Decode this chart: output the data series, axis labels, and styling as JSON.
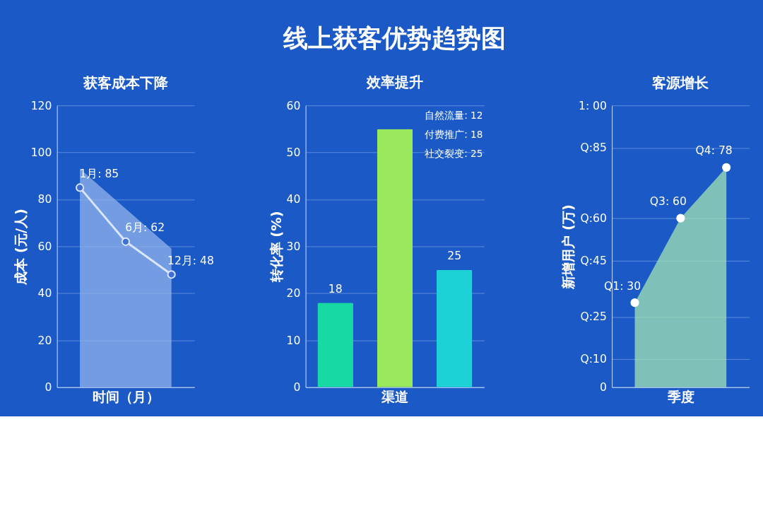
{
  "chart_data": [
    {
      "type": "line",
      "title": "获客成本下降",
      "xlabel": "时间（月）",
      "ylabel": "成本 (元/人)",
      "categories": [
        null,
        null,
        null
      ],
      "series": [
        {
          "type": "area",
          "color": "#9ab8ee",
          "values": [
            93,
            76,
            59
          ]
        },
        {
          "type": "line",
          "color": "#dbe7ff",
          "marker": "circle",
          "values": [
            85,
            62,
            48
          ],
          "value_labels": [
            "1月: 85",
            "6月: 62",
            "12月: 48"
          ]
        }
      ],
      "ylim": [
        0,
        120
      ],
      "yticks": [
        0,
        20,
        40,
        60,
        80,
        100,
        120
      ],
      "grid": "y"
    },
    {
      "type": "bar",
      "title": "线上获客优势趋势图",
      "subtitle": "效率提升",
      "xlabel": "渠道",
      "ylabel": "转化率 (%)",
      "categories": [
        null,
        null,
        null
      ],
      "values": [
        18,
        55,
        25
      ],
      "colors": [
        "#16d9a4",
        "#9ae85c",
        "#1cd2d6"
      ],
      "value_labels": [
        "18",
        null,
        "25"
      ],
      "annotations": [
        "自然流量: 12",
        "付费推广: 18",
        "社交裂变: 25"
      ],
      "ylim": [
        0,
        60
      ],
      "yticks": [
        0,
        10,
        20,
        30,
        40,
        50,
        60
      ],
      "grid": "y"
    },
    {
      "type": "area",
      "title": "客源增长",
      "xlabel": "季度",
      "ylabel": "新增用户 (万)",
      "categories": [
        null,
        null,
        null
      ],
      "values": [
        30,
        60,
        78
      ],
      "color": "#a9ecb4",
      "marker": "circle",
      "value_labels": [
        "Q1: 30",
        "Q3: 60",
        "Q4: 78"
      ],
      "ylim": [
        0,
        100
      ],
      "yticks": [
        0,
        {
          "value": 10,
          "label": "Q:10"
        },
        {
          "value": 25,
          "label": "Q:25"
        },
        {
          "value": 45,
          "label": "Q:45"
        },
        {
          "value": 60,
          "label": "Q:60"
        },
        {
          "value": 85,
          "label": "Q:85"
        },
        {
          "value": 100,
          "label": "1: 00"
        }
      ],
      "grid": "y"
    }
  ]
}
